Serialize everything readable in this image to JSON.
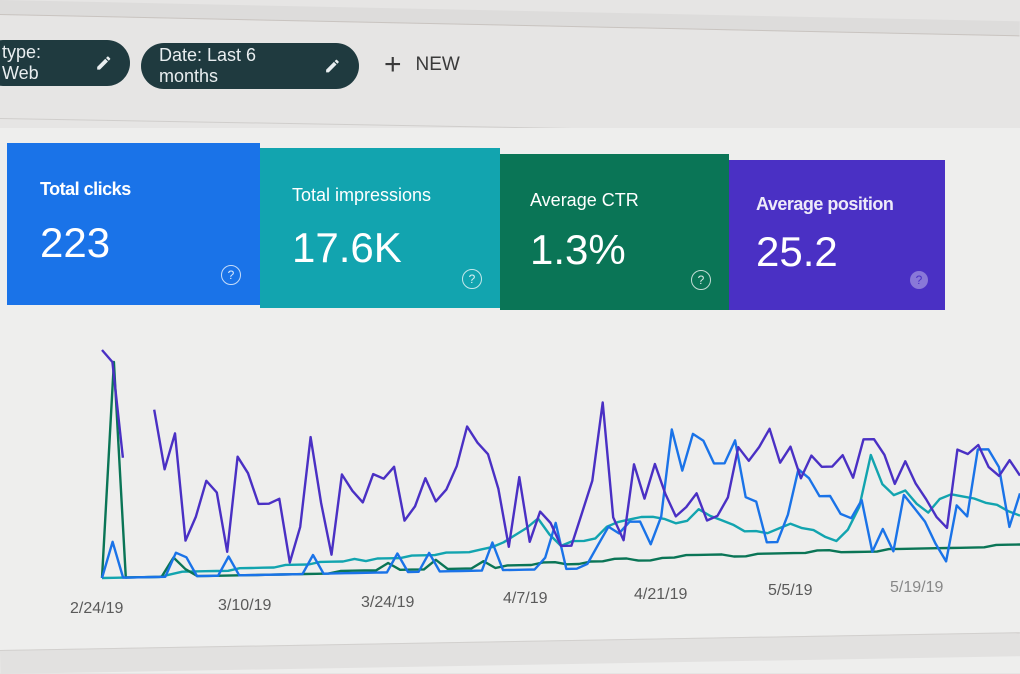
{
  "filters": {
    "chips": [
      {
        "label": "type: Web",
        "icon": "pencil-icon"
      },
      {
        "label": "Date: Last 6 months",
        "icon": "pencil-icon"
      }
    ],
    "new_button": {
      "icon": "plus-icon",
      "label": "NEW"
    }
  },
  "kpis": [
    {
      "label": "Total clicks",
      "value": "223",
      "color": "#1a73e8",
      "help_icon": "help-circle-icon"
    },
    {
      "label": "Total impressions",
      "value": "17.6K",
      "color": "#12a4af",
      "help_icon": "help-circle-icon"
    },
    {
      "label": "Average CTR",
      "value": "1.3%",
      "color": "#0a7556",
      "help_icon": "help-circle-icon"
    },
    {
      "label": "Average position",
      "value": "25.2",
      "color": "#4a30c4",
      "help_icon": "help-circle-icon"
    }
  ],
  "x_axis": {
    "ticks": [
      "2/24/19",
      "3/10/19",
      "3/24/19",
      "4/7/19",
      "4/21/19",
      "5/5/19",
      "5/19/19"
    ]
  },
  "chart_data": {
    "type": "line",
    "title": "",
    "xlabel": "",
    "ylabel": "",
    "grid": false,
    "legend": "none (series shown via KPI cards above)",
    "x_ticks": [
      "2/24/19",
      "3/10/19",
      "3/24/19",
      "4/7/19",
      "4/21/19",
      "5/5/19",
      "5/19/19"
    ],
    "y_normalized": true,
    "note": "Values are normalized heights (0-100) estimated from line positions; each series uses its own scale",
    "series": [
      {
        "name": "Average position",
        "color": "#4a30c4",
        "values": [
          95,
          90,
          50,
          null,
          null,
          70,
          45,
          60,
          15,
          25,
          40,
          35,
          10,
          50,
          43,
          30,
          30,
          32,
          5,
          20,
          58,
          30,
          8,
          42,
          35,
          30,
          42,
          40,
          45,
          22,
          28,
          40,
          30,
          35,
          45,
          62,
          55,
          50,
          35,
          10,
          40,
          12,
          25,
          20,
          10,
          10,
          24,
          38,
          72,
          22,
          12,
          45,
          30,
          45,
          32,
          22,
          26,
          32,
          20,
          22,
          30,
          52,
          46,
          52,
          60,
          45,
          52,
          38,
          48,
          43,
          43,
          48,
          38,
          55,
          55,
          48,
          35,
          45,
          35,
          28,
          20,
          15,
          50,
          48,
          52,
          42,
          38,
          45,
          38
        ]
      },
      {
        "name": "Total clicks",
        "color": "#1a73e8",
        "values": [
          0,
          15,
          0,
          0,
          0,
          0,
          0,
          10,
          8,
          0,
          0,
          0,
          8,
          0,
          0,
          0,
          0,
          0,
          0,
          0,
          8,
          0,
          0,
          0,
          0,
          0,
          0,
          0,
          8,
          0,
          0,
          8,
          0,
          0,
          0,
          0,
          0,
          12,
          0,
          0,
          0,
          0,
          5,
          20,
          0,
          0,
          2,
          10,
          18,
          15,
          20,
          20,
          10,
          22,
          60,
          42,
          58,
          55,
          45,
          45,
          55,
          30,
          28,
          10,
          10,
          22,
          42,
          38,
          30,
          30,
          22,
          20,
          28,
          5,
          15,
          5,
          30,
          24,
          18,
          8,
          0,
          25,
          20,
          50,
          50,
          42,
          15,
          30
        ]
      },
      {
        "name": "Total impressions",
        "color": "#12a4af",
        "values": [
          0,
          0,
          0,
          0,
          0,
          0,
          1,
          2,
          2,
          2,
          2,
          2,
          3,
          3,
          3,
          3,
          4,
          4,
          4,
          5,
          5,
          5,
          6,
          5,
          6,
          6,
          6,
          7,
          7,
          7,
          8,
          8,
          8,
          9,
          10,
          12,
          15,
          18,
          22,
          15,
          10,
          12,
          12,
          13,
          18,
          20,
          21,
          22,
          22,
          21,
          19,
          20,
          25,
          22,
          20,
          18,
          15,
          15,
          14,
          16,
          18,
          16,
          15,
          12,
          10,
          15,
          25,
          48,
          35,
          30,
          32,
          26,
          22,
          28,
          30,
          29,
          28,
          26,
          25,
          22,
          20
        ]
      },
      {
        "name": "Average CTR",
        "color": "#0a7556",
        "values": [
          0,
          90,
          0,
          0,
          0,
          0,
          8,
          3,
          0,
          0,
          0,
          0,
          0,
          0,
          0,
          0,
          0,
          0,
          0,
          0,
          1,
          1,
          1,
          1,
          4,
          1,
          1,
          1,
          5,
          1,
          1,
          1,
          4,
          1,
          2,
          2,
          2,
          3,
          3,
          2,
          2,
          3,
          3,
          4,
          4,
          3,
          3,
          4,
          4,
          5,
          5,
          5,
          5,
          4,
          4,
          5,
          5,
          5,
          5,
          5,
          6,
          6,
          5,
          5,
          5,
          5,
          6,
          6,
          6,
          6,
          6,
          6,
          6,
          6,
          6,
          7,
          7,
          7
        ]
      }
    ]
  }
}
